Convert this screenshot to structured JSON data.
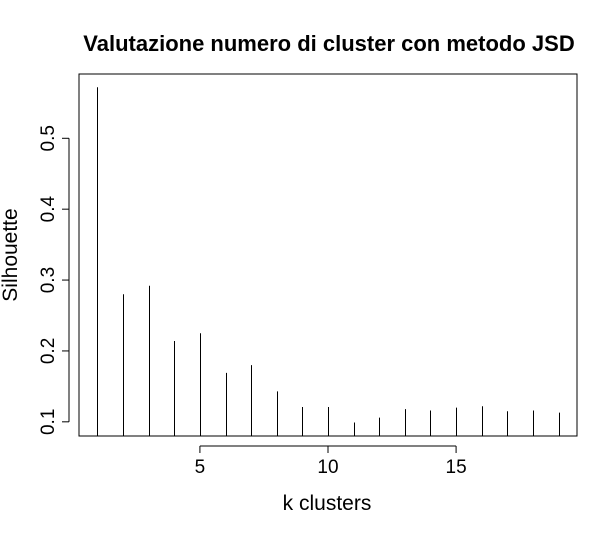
{
  "chart_data": {
    "type": "bar",
    "style": "histogram-lines",
    "title": "Valutazione numero di cluster con metodo JSD",
    "xlabel": "k clusters",
    "ylabel": "Silhouette",
    "x": [
      1,
      2,
      3,
      4,
      5,
      6,
      7,
      8,
      9,
      10,
      11,
      12,
      13,
      14,
      15,
      16,
      17,
      18,
      19
    ],
    "values": [
      0.572,
      0.28,
      0.292,
      0.214,
      0.225,
      0.169,
      0.18,
      0.143,
      0.121,
      0.121,
      0.099,
      0.106,
      0.118,
      0.116,
      0.12,
      0.122,
      0.115,
      0.116,
      0.113
    ],
    "xticks": [
      5,
      10,
      15
    ],
    "yticks": [
      0.1,
      0.2,
      0.3,
      0.4,
      0.5
    ],
    "xtick_labels": [
      "5",
      "10",
      "15"
    ],
    "ytick_labels": [
      "0.1",
      "0.2",
      "0.3",
      "0.4",
      "0.5"
    ],
    "xlim": [
      0.28,
      19.72
    ],
    "ylim": [
      0.08,
      0.5907
    ],
    "grid": false,
    "legend": "none"
  }
}
